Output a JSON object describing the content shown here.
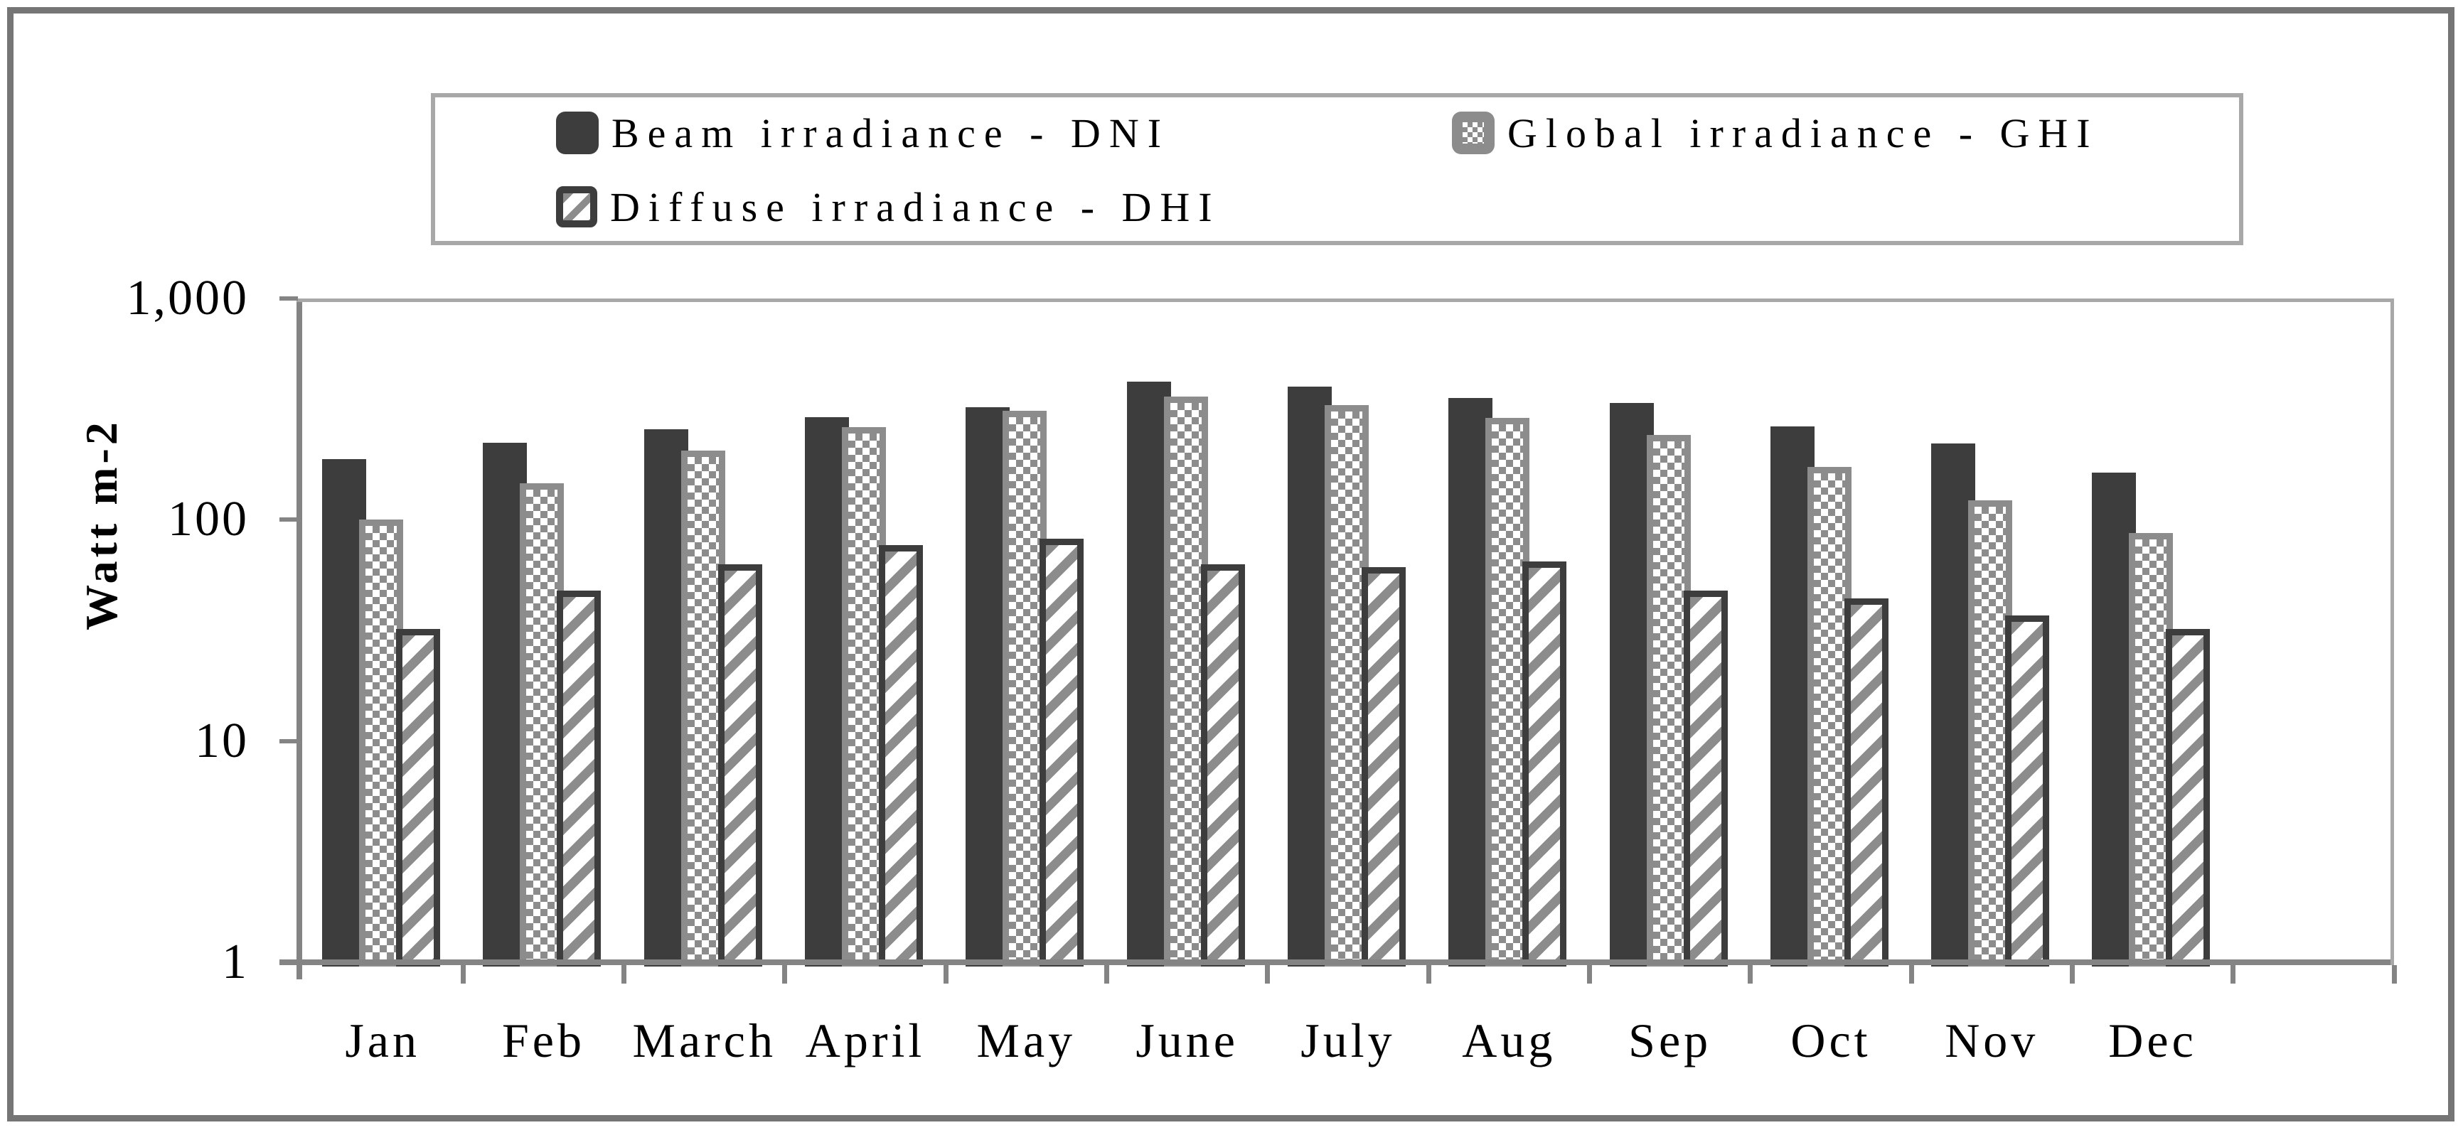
{
  "chart_data": {
    "type": "bar",
    "title": "",
    "ylabel": "Watt m-2",
    "categories": [
      "Jan",
      "Feb",
      "March",
      "April",
      "May",
      "June",
      "July",
      "Aug",
      "Sep",
      "Oct",
      "Nov",
      "Dec"
    ],
    "series": [
      {
        "name": "Beam irradiance - DNI",
        "pattern": "solid",
        "values": [
          188,
          223,
          257,
          291,
          323,
          421,
          400,
          355,
          337,
          264,
          221,
          163
        ]
      },
      {
        "name": "Global irradiance - GHI",
        "pattern": "checker",
        "values": [
          100,
          146,
          206,
          262,
          311,
          361,
          330,
          289,
          242,
          173,
          122,
          87
        ]
      },
      {
        "name": "Diffuse irradiance - DHI",
        "pattern": "stripes",
        "values": [
          32,
          48,
          63,
          77,
          82,
          63,
          61,
          65,
          48,
          44,
          37,
          32
        ]
      }
    ],
    "y_axis": {
      "scale": "log",
      "min": 1,
      "max": 1000,
      "ticks": [
        {
          "label": "1",
          "value": 1
        },
        {
          "label": "10",
          "value": 10
        },
        {
          "label": "100",
          "value": 100
        },
        {
          "label": "1,000",
          "value": 1000
        }
      ]
    },
    "x_axis": {
      "extra_empty_slots": 1
    },
    "legend_position": "top",
    "grid": false,
    "colors": {
      "bar_dark": "#3d3d3d",
      "pattern_gray": "#8c8c8c",
      "axis_gray": "#848484",
      "frame_gray": "#a8a8a8",
      "outer_border": "#757575",
      "background": "#ffffff",
      "text": "#000000"
    }
  }
}
